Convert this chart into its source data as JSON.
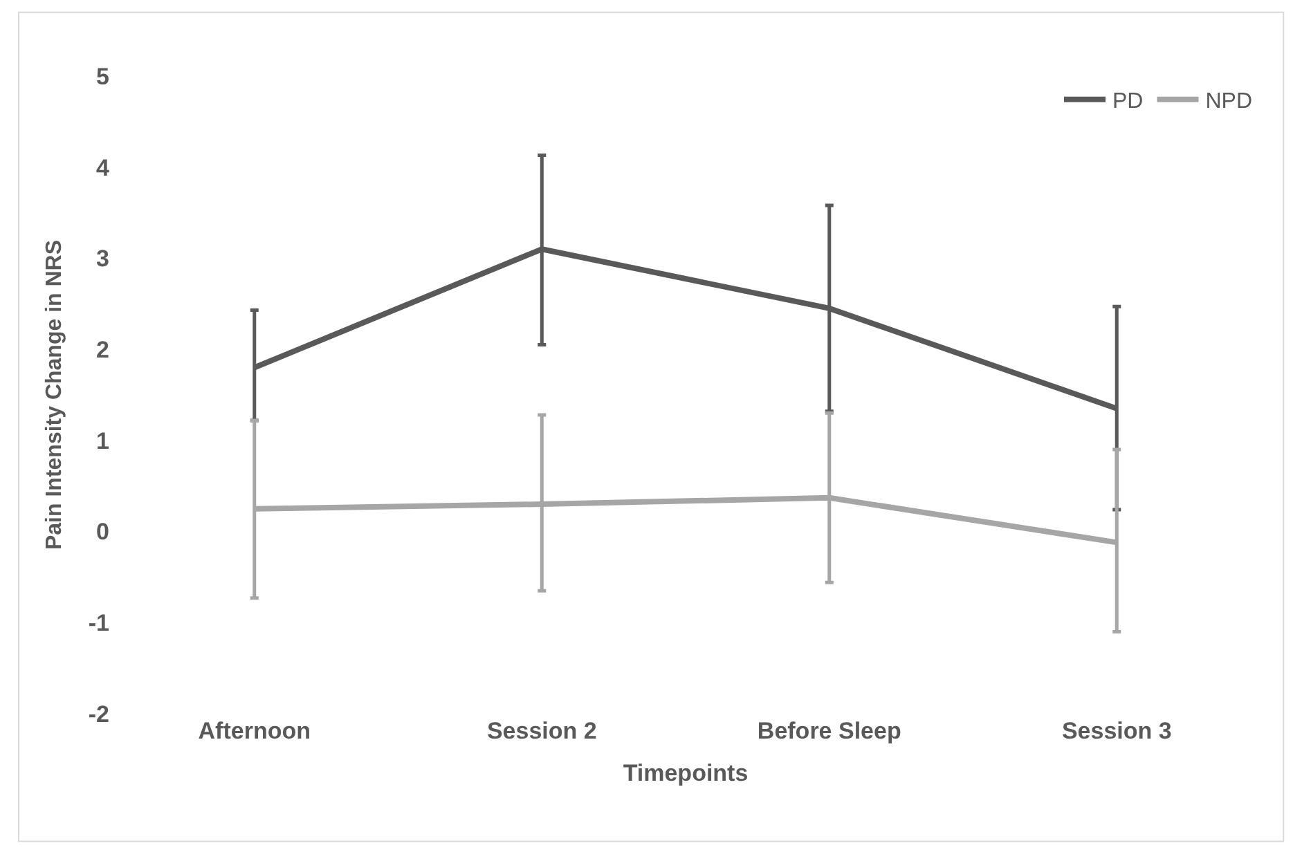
{
  "chart_data": {
    "type": "line",
    "xlabel": "Timepoints",
    "ylabel": "Pain Intensity Change in NRS",
    "categories": [
      "Afternoon",
      "Session 2",
      "Before Sleep",
      "Session 3"
    ],
    "series": [
      {
        "name": "PD",
        "color": "#595959",
        "values": [
          1.8,
          3.1,
          2.45,
          1.35
        ],
        "errors": [
          [
            1.22,
            2.43
          ],
          [
            2.05,
            4.13
          ],
          [
            1.32,
            3.58
          ],
          [
            0.24,
            2.47
          ]
        ]
      },
      {
        "name": "NPD",
        "color": "#a6a6a6",
        "values": [
          0.25,
          0.3,
          0.37,
          -0.12
        ],
        "errors": [
          [
            -0.73,
            1.22
          ],
          [
            -0.65,
            1.28
          ],
          [
            -0.56,
            1.3
          ],
          [
            -1.1,
            0.9
          ]
        ]
      }
    ],
    "ylim": [
      -2,
      5
    ],
    "yticks": [
      -2,
      -1,
      0,
      1,
      2,
      3,
      4,
      5
    ],
    "legend": "top right",
    "marker": "none",
    "line_style": "solid"
  }
}
